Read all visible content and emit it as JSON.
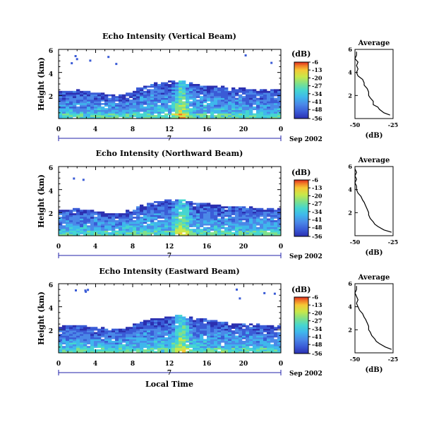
{
  "figure": {
    "time_axis_label": "Local Time",
    "x_ticks": [
      "0",
      "4",
      "8",
      "12",
      "16",
      "20",
      "0"
    ],
    "date_label": "Sep 2002",
    "day_label": "7",
    "y_ticks": [
      "6",
      "4",
      "2"
    ],
    "ylabel": "Height (km)",
    "colorbar_unit": "(dB)",
    "average_title": "Average",
    "average_unit": "(dB)",
    "colors": {
      "colormap": [
        "#2b2fb0",
        "#3a5bd6",
        "#4a88e8",
        "#3fb7ec",
        "#45d6d0",
        "#7fe08a",
        "#c8e84a",
        "#f6c835",
        "#f07a26",
        "#e02a1e"
      ],
      "axis": "#000000",
      "time_bar": "#2222aa"
    }
  },
  "chart_data": [
    {
      "type": "heatmap",
      "title": "Echo Intensity (Vertical Beam)",
      "xlabel": "",
      "ylabel": "Height (km)",
      "xlim": [
        0,
        24
      ],
      "ylim": [
        0,
        6
      ],
      "colorbar_ticks": [
        "-6",
        "-13",
        "-20",
        "-27",
        "-34",
        "-41",
        "-48",
        "-56"
      ],
      "colorbar_range": [
        -56,
        -6
      ],
      "echo_top_km": [
        2.4,
        2.4,
        2.5,
        2.4,
        2.3,
        2.1,
        2.0,
        2.1,
        2.4,
        2.8,
        3.0,
        3.1,
        3.2,
        3.3,
        3.1,
        3.0,
        2.9,
        2.8,
        2.7,
        2.6,
        2.6,
        2.5,
        2.5,
        2.5,
        2.4
      ],
      "profile": {
        "xlim": [
          -50,
          -25
        ],
        "x_ticks": [
          "-50",
          "-25"
        ],
        "y_ticks": [
          "6",
          "4",
          "2"
        ],
        "height_km": [
          0.3,
          0.5,
          0.8,
          1.0,
          1.2,
          1.5,
          1.8,
          2.0,
          2.3,
          2.6,
          2.9,
          3.1,
          3.4,
          3.7,
          4.0,
          4.3,
          4.6,
          4.9,
          5.2,
          5.5,
          5.8
        ],
        "db": [
          -27,
          -31,
          -34,
          -35,
          -38,
          -38,
          -40,
          -41,
          -41,
          -42,
          -44,
          -44,
          -45,
          -48,
          -49,
          -48,
          -49,
          -48,
          -50,
          -49,
          -49
        ]
      }
    },
    {
      "type": "heatmap",
      "title": "Echo Intensity (Northward Beam)",
      "xlabel": "",
      "ylabel": "Height (km)",
      "xlim": [
        0,
        24
      ],
      "ylim": [
        0,
        6
      ],
      "colorbar_ticks": [
        "-6",
        "-13",
        "-20",
        "-27",
        "-34",
        "-41",
        "-48",
        "-56"
      ],
      "colorbar_range": [
        -56,
        -6
      ],
      "echo_top_km": [
        2.3,
        2.3,
        2.4,
        2.3,
        2.2,
        2.0,
        1.9,
        2.0,
        2.3,
        2.7,
        2.9,
        3.0,
        3.1,
        3.2,
        3.0,
        2.9,
        2.8,
        2.7,
        2.6,
        2.5,
        2.5,
        2.4,
        2.4,
        2.4,
        2.3
      ],
      "profile": {
        "xlim": [
          -50,
          -25
        ],
        "x_ticks": [
          "-50",
          "-25"
        ],
        "y_ticks": [
          "6",
          "4",
          "2"
        ],
        "height_km": [
          0.3,
          0.5,
          0.8,
          1.0,
          1.2,
          1.5,
          1.8,
          2.0,
          2.3,
          2.6,
          2.9,
          3.1,
          3.4,
          3.7,
          4.0,
          4.3,
          4.6,
          4.9,
          5.2,
          5.5,
          5.8
        ],
        "db": [
          -26,
          -31,
          -35,
          -37,
          -38,
          -40,
          -41,
          -41,
          -42,
          -43,
          -44,
          -45,
          -46,
          -48,
          -49,
          -49,
          -50,
          -49,
          -50,
          -49,
          -50
        ]
      }
    },
    {
      "type": "heatmap",
      "title": "Echo Intensity (Eastward Beam)",
      "xlabel": "Local Time",
      "ylabel": "Height (km)",
      "xlim": [
        0,
        24
      ],
      "ylim": [
        0,
        6
      ],
      "colorbar_ticks": [
        "-6",
        "-13",
        "-20",
        "-27",
        "-34",
        "-41",
        "-48",
        "-56"
      ],
      "colorbar_range": [
        -56,
        -6
      ],
      "echo_top_km": [
        2.3,
        2.4,
        2.4,
        2.3,
        2.2,
        2.1,
        2.0,
        2.1,
        2.4,
        2.7,
        2.9,
        3.0,
        3.2,
        3.3,
        3.1,
        3.0,
        2.9,
        2.8,
        2.7,
        2.6,
        2.5,
        2.5,
        2.4,
        2.4,
        2.4
      ],
      "profile": {
        "xlim": [
          -50,
          -25
        ],
        "x_ticks": [
          "-50",
          "-25"
        ],
        "y_ticks": [
          "6",
          "4",
          "2"
        ],
        "height_km": [
          0.3,
          0.5,
          0.8,
          1.0,
          1.2,
          1.5,
          1.8,
          2.0,
          2.3,
          2.6,
          2.9,
          3.1,
          3.4,
          3.7,
          4.0,
          4.3,
          4.6,
          4.9,
          5.2,
          5.5,
          5.8
        ],
        "db": [
          -26,
          -30,
          -34,
          -36,
          -37,
          -39,
          -40,
          -41,
          -41,
          -42,
          -43,
          -44,
          -45,
          -47,
          -48,
          -49,
          -48,
          -49,
          -50,
          -49,
          -49
        ]
      }
    }
  ]
}
